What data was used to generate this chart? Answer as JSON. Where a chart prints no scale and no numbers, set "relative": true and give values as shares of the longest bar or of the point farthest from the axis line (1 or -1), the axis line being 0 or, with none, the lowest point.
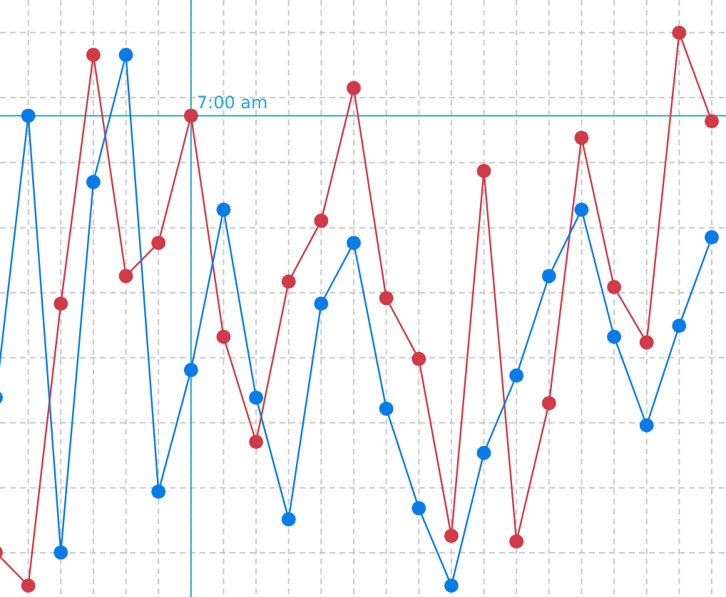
{
  "chart_data": {
    "type": "line",
    "relative": true,
    "categories": [
      null,
      null,
      null,
      null,
      null,
      null,
      null,
      null,
      null,
      null,
      null,
      null,
      null,
      null,
      null,
      null,
      null,
      null,
      null,
      null,
      null,
      null,
      null
    ],
    "series": [
      {
        "color": "#d13a48",
        "values": [
          0.06,
          0,
          0.51,
          0.96,
          0.56,
          0.62,
          0.85,
          0.45,
          0.26,
          0.55,
          0.66,
          0.9,
          0.52,
          0.41,
          0.09,
          0.75,
          0.08,
          0.33,
          0.81,
          0.54,
          0.44,
          1,
          0.84
        ]
      },
      {
        "color": "#0a7ce8",
        "values": [
          0.34,
          0.85,
          0.06,
          0.73,
          0.96,
          0.17,
          0.39,
          0.68,
          0.34,
          0.12,
          0.51,
          0.62,
          0.32,
          0.14,
          0,
          0.24,
          0.38,
          0.56,
          0.68,
          0.45,
          0.29,
          0.47,
          0.63
        ]
      }
    ],
    "ref_lines": [
      {
        "axis": "y",
        "value": 0.85,
        "color": "#1fa9dc"
      }
    ],
    "annotations": [
      "7:00 am"
    ],
    "grid": true,
    "marker": "circle",
    "line_style": "solid"
  }
}
